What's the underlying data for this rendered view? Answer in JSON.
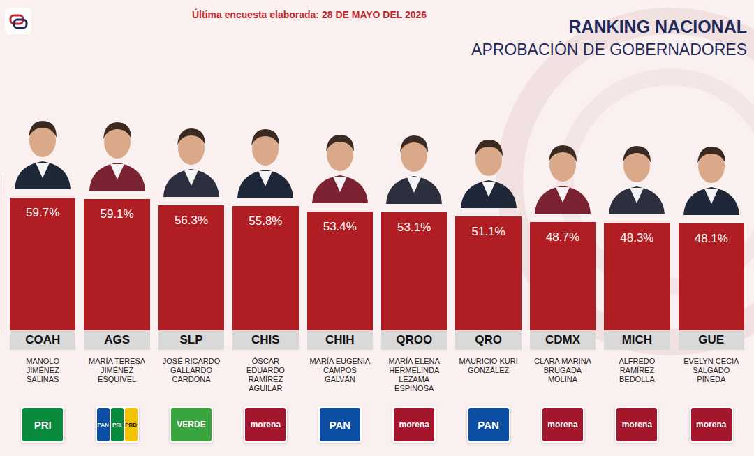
{
  "chart_data": {
    "type": "bar",
    "title": "RANKING NACIONAL",
    "subtitle": "APROBACIÓN DE GOBERNADORES",
    "annotations": [
      "Última encuesta elaborada: 28 DE MAYO DEL 2026"
    ],
    "categories": [
      "COAH",
      "AGS",
      "SLP",
      "CHIS",
      "CHIH",
      "QROO",
      "QRO",
      "CDMX",
      "MICH",
      "GUE"
    ],
    "values": [
      59.7,
      59.1,
      56.3,
      55.8,
      53.4,
      53.1,
      51.1,
      48.7,
      48.3,
      48.1
    ],
    "value_labels": [
      "59.7%",
      "59.1%",
      "56.3%",
      "55.8%",
      "53.4%",
      "53.1%",
      "51.1%",
      "48.7%",
      "48.3%",
      "48.1%"
    ],
    "names": [
      "MANOLO JIMÉNEZ SALINAS",
      "MARÍA TERESA JIMÉNEZ ESQUIVEL",
      "JOSÉ RICARDO GALLARDO CARDONA",
      "ÓSCAR EDUARDO RAMÍREZ AGUILAR",
      "MARÍA EUGENIA CAMPOS GALVÁN",
      "MARÍA ELENA HERMELINDA LEZAMA ESPINOSA",
      "MAURICIO KURI GONZÁLEZ",
      "CLARA MARINA BRUGADA MOLINA",
      "ALFREDO RAMÍREZ BEDOLLA",
      "EVELYN CECIA SALGADO PINEDA"
    ],
    "parties": [
      [
        {
          "name": "PRI",
          "color": "#0a8a3c"
        }
      ],
      [
        {
          "name": "PAN",
          "color": "#0b4ea2"
        },
        {
          "name": "PRI",
          "color": "#0a8a3c"
        },
        {
          "name": "PRD",
          "color": "#f5c400"
        }
      ],
      [
        {
          "name": "VERDE",
          "color": "#3aa53f"
        }
      ],
      [
        {
          "name": "morena",
          "color": "#a3162b"
        }
      ],
      [
        {
          "name": "PAN",
          "color": "#0b4ea2"
        }
      ],
      [
        {
          "name": "morena",
          "color": "#a3162b"
        }
      ],
      [
        {
          "name": "PAN",
          "color": "#0b4ea2"
        }
      ],
      [
        {
          "name": "morena",
          "color": "#a3162b"
        }
      ],
      [
        {
          "name": "morena",
          "color": "#a3162b"
        }
      ],
      [
        {
          "name": "morena",
          "color": "#a3162b"
        }
      ]
    ],
    "color": "#b01e23",
    "ylim": [
      0,
      70
    ],
    "tick_labels": false,
    "data_labels": true,
    "grid": false
  }
}
